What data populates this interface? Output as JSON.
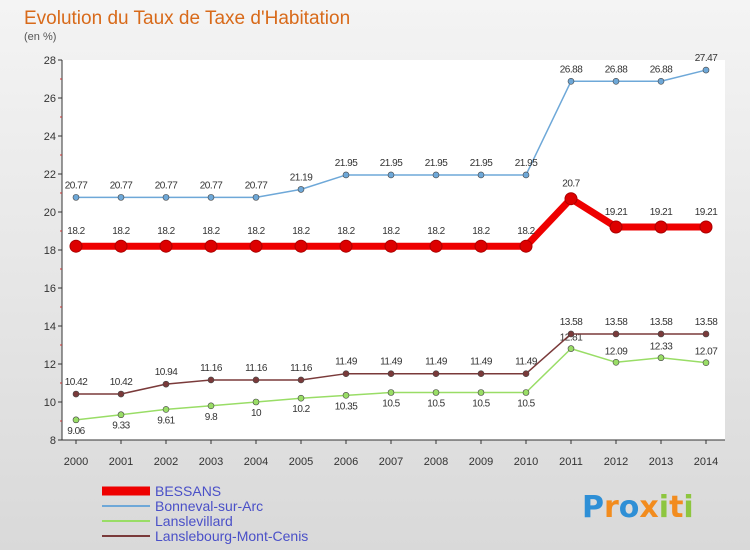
{
  "chart_data": {
    "type": "line",
    "title": "Evolution du Taux de Taxe d'Habitation",
    "unit": "(en %)",
    "x": [
      2000,
      2001,
      2002,
      2003,
      2004,
      2005,
      2006,
      2007,
      2008,
      2009,
      2010,
      2011,
      2012,
      2013,
      2014
    ],
    "x_tick_labels": [
      "2000",
      "2001",
      "2002",
      "2003",
      "2004",
      "2005",
      "2006",
      "2007",
      "2008",
      "2009",
      "2010",
      "2011",
      "2012",
      "2013",
      "2014"
    ],
    "ylim": [
      8,
      28
    ],
    "y_ticks": [
      8,
      10,
      12,
      14,
      16,
      18,
      20,
      22,
      24,
      26,
      28
    ],
    "y_tick_labels": [
      "8",
      "10",
      "12",
      "14",
      "16",
      "18",
      "20",
      "22",
      "24",
      "26",
      "28"
    ],
    "grid": false,
    "legend_position": "bottom-left",
    "series": [
      {
        "name": "BESSANS",
        "color": "#ee0000",
        "values": [
          18.2,
          18.2,
          18.2,
          18.2,
          18.2,
          18.2,
          18.2,
          18.2,
          18.2,
          18.2,
          18.2,
          20.7,
          19.21,
          19.21,
          19.21
        ],
        "labels": [
          "18.2",
          "18.2",
          "18.2",
          "18.2",
          "18.2",
          "18.2",
          "18.2",
          "18.2",
          "18.2",
          "18.2",
          "18.2",
          "20.7",
          "19.21",
          "19.21",
          "19.21"
        ]
      },
      {
        "name": "Bonneval-sur-Arc",
        "color": "#6ea8d8",
        "values": [
          20.77,
          20.77,
          20.77,
          20.77,
          20.77,
          21.19,
          21.95,
          21.95,
          21.95,
          21.95,
          21.95,
          26.88,
          26.88,
          26.88,
          27.47
        ],
        "labels": [
          "20.77",
          "20.77",
          "20.77",
          "20.77",
          "20.77",
          "21.19",
          "21.95",
          "21.95",
          "21.95",
          "21.95",
          "21.95",
          "26.88",
          "26.88",
          "26.88",
          "27.47"
        ]
      },
      {
        "name": "Lanslevillard",
        "color": "#99dd66",
        "values": [
          9.06,
          9.33,
          9.61,
          9.8,
          10,
          10.2,
          10.35,
          10.5,
          10.5,
          10.5,
          10.5,
          12.81,
          12.09,
          12.33,
          12.07
        ],
        "labels": [
          "9.06",
          "9.33",
          "9.61",
          "9.8",
          "10",
          "10.2",
          "10.35",
          "10.5",
          "10.5",
          "10.5",
          "10.5",
          "12.81",
          "12.09",
          "12.33",
          "12.07"
        ]
      },
      {
        "name": "Lanslebourg-Mont-Cenis",
        "color": "#7a3a3a",
        "values": [
          10.42,
          10.42,
          10.94,
          11.16,
          11.16,
          11.16,
          11.49,
          11.49,
          11.49,
          11.49,
          11.49,
          13.58,
          13.58,
          13.58,
          13.58
        ],
        "labels": [
          "10.42",
          "10.42",
          "10.94",
          "11.16",
          "11.16",
          "11.16",
          "11.49",
          "11.49",
          "11.49",
          "11.49",
          "11.49",
          "13.58",
          "13.58",
          "13.58",
          "13.58"
        ]
      }
    ]
  },
  "logo": {
    "letters": [
      "P",
      "r",
      "o",
      "x",
      "i",
      "t",
      "i"
    ],
    "colors": [
      "#2e8fd6",
      "#f28c1e",
      "#2e8fd6",
      "#f28c1e",
      "#8dc63f",
      "#f28c1e",
      "#8dc63f"
    ]
  }
}
